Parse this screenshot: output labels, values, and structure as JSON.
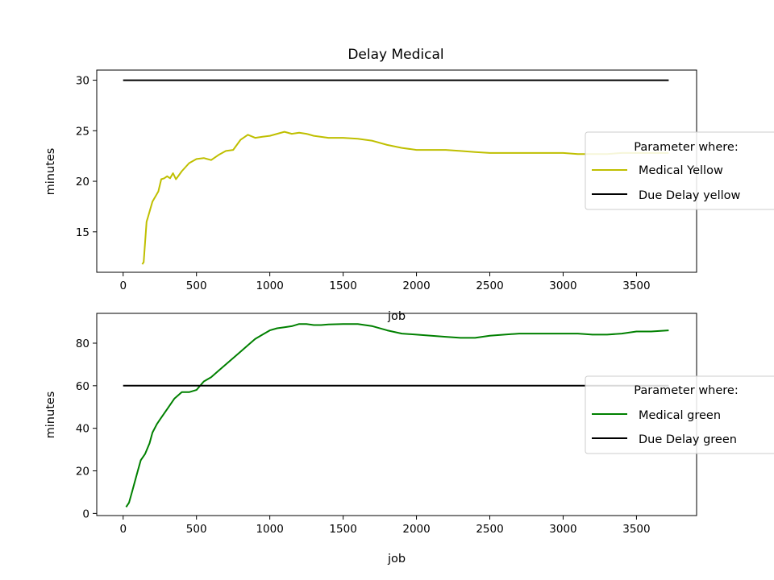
{
  "figure_title": "Delay Medical",
  "chart_data": [
    {
      "type": "line",
      "title": "Delay Medical",
      "xlabel": "job",
      "ylabel": "minutes",
      "xlim": [
        -180,
        3910
      ],
      "ylim": [
        11,
        31
      ],
      "xticks": [
        0,
        500,
        1000,
        1500,
        2000,
        2500,
        3000,
        3500
      ],
      "yticks": [
        15,
        20,
        25,
        30
      ],
      "grid": false,
      "legend": {
        "title": "Parameter where:",
        "placement": "right",
        "entries": [
          "Medical Yellow",
          "Due Delay yellow"
        ]
      },
      "series": [
        {
          "name": "Medical Yellow",
          "color": "#bfbf00",
          "x": [
            130,
            140,
            150,
            160,
            170,
            180,
            200,
            220,
            240,
            260,
            280,
            300,
            320,
            340,
            360,
            380,
            400,
            450,
            500,
            550,
            600,
            650,
            700,
            750,
            800,
            850,
            900,
            950,
            1000,
            1050,
            1100,
            1150,
            1200,
            1250,
            1300,
            1400,
            1500,
            1600,
            1700,
            1800,
            1900,
            2000,
            2100,
            2200,
            2300,
            2400,
            2500,
            2600,
            2700,
            2800,
            2900,
            3000,
            3100,
            3200,
            3300,
            3400,
            3500,
            3600,
            3720
          ],
          "y": [
            11.8,
            12.0,
            14.0,
            16.0,
            16.5,
            17.0,
            18.0,
            18.5,
            19.0,
            20.2,
            20.3,
            20.5,
            20.3,
            20.8,
            20.2,
            20.6,
            21.0,
            21.8,
            22.2,
            22.3,
            22.1,
            22.6,
            23.0,
            23.1,
            24.1,
            24.6,
            24.3,
            24.4,
            24.5,
            24.7,
            24.9,
            24.7,
            24.8,
            24.7,
            24.5,
            24.3,
            24.3,
            24.2,
            24.0,
            23.6,
            23.3,
            23.1,
            23.1,
            23.1,
            23.0,
            22.9,
            22.8,
            22.8,
            22.8,
            22.8,
            22.8,
            22.8,
            22.7,
            22.7,
            22.7,
            22.8,
            22.8,
            22.8,
            22.8
          ]
        },
        {
          "name": "Due Delay yellow",
          "color": "#000000",
          "x": [
            0,
            3720
          ],
          "y": [
            30,
            30
          ]
        }
      ]
    },
    {
      "type": "line",
      "title": "",
      "xlabel": "job",
      "ylabel": "minutes",
      "xlim": [
        -180,
        3910
      ],
      "ylim": [
        -1,
        94
      ],
      "xticks": [
        0,
        500,
        1000,
        1500,
        2000,
        2500,
        3000,
        3500
      ],
      "yticks": [
        0,
        20,
        40,
        60,
        80
      ],
      "grid": false,
      "legend": {
        "title": "Parameter where:",
        "placement": "right",
        "entries": [
          "Medical green",
          "Due Delay green"
        ]
      },
      "series": [
        {
          "name": "Medical green",
          "color": "#008000",
          "x": [
            20,
            40,
            60,
            80,
            100,
            120,
            150,
            180,
            200,
            230,
            250,
            300,
            350,
            400,
            450,
            500,
            550,
            600,
            650,
            700,
            750,
            800,
            850,
            900,
            950,
            1000,
            1050,
            1100,
            1150,
            1200,
            1250,
            1300,
            1350,
            1400,
            1500,
            1600,
            1700,
            1800,
            1900,
            2000,
            2100,
            2200,
            2300,
            2400,
            2500,
            2600,
            2700,
            2800,
            2900,
            3000,
            3100,
            3200,
            3300,
            3400,
            3500,
            3600,
            3720
          ],
          "y": [
            3,
            5,
            10,
            15,
            20,
            25,
            28,
            33,
            38,
            42,
            44,
            49,
            54,
            57,
            57,
            58,
            62,
            64,
            67,
            70,
            73,
            76,
            79,
            82,
            84,
            86,
            87,
            87.5,
            88,
            89,
            89,
            88.5,
            88.5,
            88.8,
            89,
            89,
            88,
            86,
            84.5,
            84,
            83.5,
            83,
            82.5,
            82.5,
            83.5,
            84,
            84.5,
            84.5,
            84.5,
            84.5,
            84.5,
            84,
            84,
            84.5,
            85.5,
            85.5,
            86
          ]
        },
        {
          "name": "Due Delay green",
          "color": "#000000",
          "x": [
            0,
            3720
          ],
          "y": [
            60,
            60
          ]
        }
      ]
    }
  ]
}
